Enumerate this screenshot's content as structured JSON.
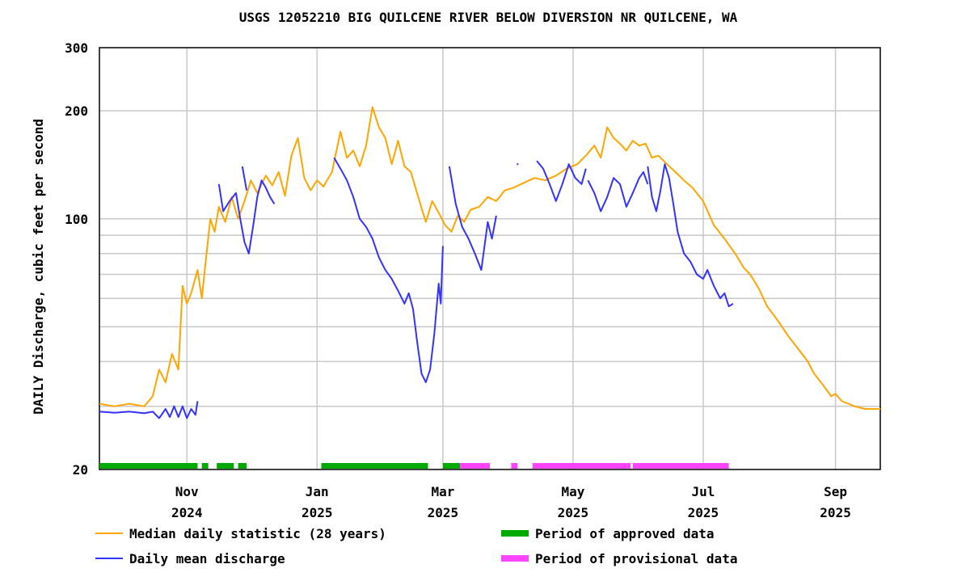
{
  "chart_data": {
    "type": "line",
    "title": "USGS 12052210 BIG QUILCENE RIVER BELOW DIVERSION NR QUILCENE, WA",
    "ylabel": "DAILY Discharge, cubic feet per second",
    "xlabel": "",
    "yscale": "log",
    "ylim": [
      20,
      300
    ],
    "xlim": [
      "2024-09-21",
      "2025-09-22"
    ],
    "y_ticks": [
      {
        "value": 20,
        "label": "20"
      },
      {
        "value": 100,
        "label": "100"
      },
      {
        "value": 200,
        "label": "200"
      },
      {
        "value": 300,
        "label": "300"
      }
    ],
    "y_gridlines": [
      30,
      40,
      50,
      60,
      70,
      80,
      90,
      100,
      200
    ],
    "x_ticks": [
      {
        "date": "2024-11-01",
        "month": "Nov",
        "year": "2024"
      },
      {
        "date": "2025-01-01",
        "month": "Jan",
        "year": "2025"
      },
      {
        "date": "2025-03-01",
        "month": "Mar",
        "year": "2025"
      },
      {
        "date": "2025-05-01",
        "month": "May",
        "year": "2025"
      },
      {
        "date": "2025-07-01",
        "month": "Jul",
        "year": "2025"
      },
      {
        "date": "2025-09-01",
        "month": "Sep",
        "year": "2025"
      }
    ],
    "grid": true,
    "legend_position": "bottom",
    "series": [
      {
        "name": "Median daily statistic (28 years)",
        "color": "#ffa500",
        "points": [
          [
            "2024-09-21",
            30.5
          ],
          [
            "2024-09-28",
            30.0
          ],
          [
            "2024-10-05",
            30.5
          ],
          [
            "2024-10-12",
            30.0
          ],
          [
            "2024-10-16",
            32.0
          ],
          [
            "2024-10-19",
            38.0
          ],
          [
            "2024-10-22",
            35.0
          ],
          [
            "2024-10-25",
            42.0
          ],
          [
            "2024-10-28",
            38.0
          ],
          [
            "2024-10-30",
            65.0
          ],
          [
            "2024-11-01",
            58.0
          ],
          [
            "2024-11-03",
            62.0
          ],
          [
            "2024-11-06",
            72.0
          ],
          [
            "2024-11-08",
            60.0
          ],
          [
            "2024-11-10",
            78.0
          ],
          [
            "2024-11-12",
            100.0
          ],
          [
            "2024-11-14",
            92.0
          ],
          [
            "2024-11-16",
            108.0
          ],
          [
            "2024-11-19",
            98.0
          ],
          [
            "2024-11-22",
            115.0
          ],
          [
            "2024-11-25",
            100.0
          ],
          [
            "2024-11-28",
            112.0
          ],
          [
            "2024-12-01",
            128.0
          ],
          [
            "2024-12-04",
            118.0
          ],
          [
            "2024-12-08",
            132.0
          ],
          [
            "2024-12-11",
            124.0
          ],
          [
            "2024-12-14",
            135.0
          ],
          [
            "2024-12-17",
            116.0
          ],
          [
            "2024-12-20",
            150.0
          ],
          [
            "2024-12-23",
            168.0
          ],
          [
            "2024-12-26",
            130.0
          ],
          [
            "2024-12-29",
            120.0
          ],
          [
            "2025-01-01",
            128.0
          ],
          [
            "2025-01-04",
            123.0
          ],
          [
            "2025-01-08",
            135.0
          ],
          [
            "2025-01-12",
            175.0
          ],
          [
            "2025-01-15",
            148.0
          ],
          [
            "2025-01-18",
            155.0
          ],
          [
            "2025-01-21",
            140.0
          ],
          [
            "2025-01-24",
            160.0
          ],
          [
            "2025-01-27",
            205.0
          ],
          [
            "2025-01-30",
            180.0
          ],
          [
            "2025-02-02",
            168.0
          ],
          [
            "2025-02-05",
            142.0
          ],
          [
            "2025-02-08",
            165.0
          ],
          [
            "2025-02-11",
            140.0
          ],
          [
            "2025-02-14",
            135.0
          ],
          [
            "2025-02-18",
            112.0
          ],
          [
            "2025-02-21",
            98.0
          ],
          [
            "2025-02-24",
            112.0
          ],
          [
            "2025-02-27",
            104.0
          ],
          [
            "2025-03-02",
            96.0
          ],
          [
            "2025-03-05",
            92.0
          ],
          [
            "2025-03-08",
            102.0
          ],
          [
            "2025-03-11",
            98.0
          ],
          [
            "2025-03-14",
            106.0
          ],
          [
            "2025-03-18",
            108.0
          ],
          [
            "2025-03-22",
            115.0
          ],
          [
            "2025-03-26",
            112.0
          ],
          [
            "2025-03-30",
            120.0
          ],
          [
            "2025-04-03",
            122.0
          ],
          [
            "2025-04-08",
            126.0
          ],
          [
            "2025-04-13",
            130.0
          ],
          [
            "2025-04-18",
            128.0
          ],
          [
            "2025-04-23",
            132.0
          ],
          [
            "2025-04-28",
            138.0
          ],
          [
            "2025-05-03",
            142.0
          ],
          [
            "2025-05-07",
            150.0
          ],
          [
            "2025-05-11",
            160.0
          ],
          [
            "2025-05-14",
            148.0
          ],
          [
            "2025-05-17",
            180.0
          ],
          [
            "2025-05-20",
            168.0
          ],
          [
            "2025-05-23",
            162.0
          ],
          [
            "2025-05-26",
            155.0
          ],
          [
            "2025-05-29",
            165.0
          ],
          [
            "2025-06-01",
            160.0
          ],
          [
            "2025-06-04",
            162.0
          ],
          [
            "2025-06-07",
            148.0
          ],
          [
            "2025-06-10",
            150.0
          ],
          [
            "2025-06-14",
            142.0
          ],
          [
            "2025-06-18",
            135.0
          ],
          [
            "2025-06-22",
            128.0
          ],
          [
            "2025-06-26",
            122.0
          ],
          [
            "2025-07-01",
            112.0
          ],
          [
            "2025-07-06",
            96.0
          ],
          [
            "2025-07-11",
            88.0
          ],
          [
            "2025-07-16",
            80.0
          ],
          [
            "2025-07-20",
            73.0
          ],
          [
            "2025-07-23",
            70.0
          ],
          [
            "2025-07-27",
            64.0
          ],
          [
            "2025-07-31",
            57.0
          ],
          [
            "2025-08-05",
            52.0
          ],
          [
            "2025-08-10",
            47.0
          ],
          [
            "2025-08-15",
            43.0
          ],
          [
            "2025-08-19",
            40.0
          ],
          [
            "2025-08-22",
            37.0
          ],
          [
            "2025-08-26",
            34.5
          ],
          [
            "2025-08-30",
            32.0
          ],
          [
            "2025-09-01",
            32.5
          ],
          [
            "2025-09-04",
            31.0
          ],
          [
            "2025-09-10",
            30.0
          ],
          [
            "2025-09-15",
            29.5
          ],
          [
            "2025-09-22",
            29.5
          ]
        ]
      },
      {
        "name": "Daily mean discharge",
        "color": "#3333ff",
        "segments": [
          [
            [
              "2024-09-21",
              29.0
            ],
            [
              "2024-09-28",
              28.8
            ],
            [
              "2024-10-05",
              29.0
            ],
            [
              "2024-10-12",
              28.7
            ],
            [
              "2024-10-16",
              29.0
            ],
            [
              "2024-10-19",
              27.8
            ],
            [
              "2024-10-22",
              29.5
            ],
            [
              "2024-10-24",
              28.0
            ],
            [
              "2024-10-26",
              30.0
            ],
            [
              "2024-10-28",
              28.0
            ],
            [
              "2024-10-30",
              30.0
            ],
            [
              "2024-11-01",
              27.8
            ],
            [
              "2024-11-03",
              29.5
            ],
            [
              "2024-11-05",
              28.4
            ],
            [
              "2024-11-06",
              31.0
            ]
          ],
          [
            [
              "2024-11-16",
              125.0
            ],
            [
              "2024-11-18",
              105.0
            ],
            [
              "2024-11-21",
              112.0
            ],
            [
              "2024-11-24",
              118.0
            ],
            [
              "2024-11-26",
              100.0
            ],
            [
              "2024-11-28",
              86.0
            ],
            [
              "2024-11-30",
              80.0
            ],
            [
              "2024-12-02",
              95.0
            ],
            [
              "2024-12-04",
              115.0
            ],
            [
              "2024-12-06",
              128.0
            ],
            [
              "2024-12-08",
              122.0
            ],
            [
              "2024-12-10",
              115.0
            ],
            [
              "2024-12-12",
              110.0
            ]
          ],
          [
            [
              "2024-11-27",
              140.0
            ],
            [
              "2024-11-29",
              120.0
            ]
          ],
          [
            [
              "2025-01-09",
              148.0
            ],
            [
              "2025-01-12",
              138.0
            ],
            [
              "2025-01-15",
              128.0
            ],
            [
              "2025-01-18",
              115.0
            ],
            [
              "2025-01-21",
              100.0
            ],
            [
              "2025-01-24",
              95.0
            ],
            [
              "2025-01-27",
              88.0
            ],
            [
              "2025-01-30",
              78.0
            ],
            [
              "2025-02-02",
              72.0
            ],
            [
              "2025-02-05",
              68.0
            ],
            [
              "2025-02-08",
              63.0
            ],
            [
              "2025-02-11",
              58.0
            ],
            [
              "2025-02-13",
              62.0
            ],
            [
              "2025-02-15",
              56.0
            ],
            [
              "2025-02-17",
              45.0
            ],
            [
              "2025-02-19",
              37.0
            ],
            [
              "2025-02-21",
              35.0
            ],
            [
              "2025-02-23",
              38.0
            ],
            [
              "2025-02-25",
              48.0
            ],
            [
              "2025-02-27",
              66.0
            ],
            [
              "2025-02-28",
              58.0
            ],
            [
              "2025-03-01",
              84.0
            ]
          ],
          [
            [
              "2025-03-04",
              140.0
            ],
            [
              "2025-03-07",
              110.0
            ],
            [
              "2025-03-10",
              95.0
            ],
            [
              "2025-03-13",
              88.0
            ],
            [
              "2025-03-16",
              80.0
            ],
            [
              "2025-03-19",
              72.0
            ],
            [
              "2025-03-22",
              98.0
            ],
            [
              "2025-03-24",
              88.0
            ],
            [
              "2025-03-26",
              102.0
            ]
          ],
          [
            [
              "2025-04-05",
              142.0
            ]
          ],
          [
            [
              "2025-04-14",
              145.0
            ],
            [
              "2025-04-17",
              138.0
            ],
            [
              "2025-04-20",
              125.0
            ],
            [
              "2025-04-23",
              112.0
            ],
            [
              "2025-04-26",
              125.0
            ],
            [
              "2025-04-29",
              142.0
            ],
            [
              "2025-05-02",
              130.0
            ],
            [
              "2025-05-05",
              125.0
            ],
            [
              "2025-05-07",
              138.0
            ]
          ],
          [
            [
              "2025-05-08",
              128.0
            ],
            [
              "2025-05-11",
              118.0
            ],
            [
              "2025-05-14",
              105.0
            ],
            [
              "2025-05-17",
              115.0
            ],
            [
              "2025-05-20",
              130.0
            ],
            [
              "2025-05-23",
              125.0
            ],
            [
              "2025-05-26",
              108.0
            ],
            [
              "2025-05-29",
              118.0
            ],
            [
              "2025-06-01",
              130.0
            ],
            [
              "2025-06-03",
              135.0
            ],
            [
              "2025-06-05",
              125.0
            ]
          ],
          [
            [
              "2025-06-05",
              140.0
            ],
            [
              "2025-06-07",
              115.0
            ],
            [
              "2025-06-09",
              105.0
            ],
            [
              "2025-06-11",
              120.0
            ],
            [
              "2025-06-13",
              142.0
            ],
            [
              "2025-06-15",
              130.0
            ],
            [
              "2025-06-17",
              110.0
            ],
            [
              "2025-06-19",
              92.0
            ],
            [
              "2025-06-22",
              80.0
            ],
            [
              "2025-06-25",
              76.0
            ],
            [
              "2025-06-28",
              70.0
            ],
            [
              "2025-07-01",
              68.0
            ],
            [
              "2025-07-03",
              72.0
            ],
            [
              "2025-07-06",
              65.0
            ],
            [
              "2025-07-09",
              60.0
            ],
            [
              "2025-07-11",
              62.0
            ],
            [
              "2025-07-13",
              57.0
            ],
            [
              "2025-07-15",
              58.0
            ]
          ]
        ]
      }
    ],
    "data_periods": {
      "approved": {
        "name": "Period of approved data",
        "color": "#00aa00",
        "ranges": [
          [
            "2024-09-21",
            "2024-11-06"
          ],
          [
            "2024-11-08",
            "2024-11-11"
          ],
          [
            "2024-11-15",
            "2024-11-23"
          ],
          [
            "2024-11-25",
            "2024-11-29"
          ],
          [
            "2025-01-03",
            "2025-02-22"
          ],
          [
            "2025-03-01",
            "2025-03-09"
          ]
        ]
      },
      "provisional": {
        "name": "Period of provisional data",
        "color": "#ff44ff",
        "ranges": [
          [
            "2025-03-09",
            "2025-03-23"
          ],
          [
            "2025-04-02",
            "2025-04-05"
          ],
          [
            "2025-04-12",
            "2025-05-28"
          ],
          [
            "2025-05-29",
            "2025-07-13"
          ]
        ]
      }
    },
    "legend": [
      {
        "label": "Median daily statistic (28 years)",
        "kind": "line",
        "color": "#ffa500"
      },
      {
        "label": "Daily mean discharge",
        "kind": "line",
        "color": "#3333ff"
      },
      {
        "label": "Period of approved data",
        "kind": "bar",
        "color": "#00aa00"
      },
      {
        "label": "Period of provisional data",
        "kind": "bar",
        "color": "#ff44ff"
      }
    ]
  }
}
